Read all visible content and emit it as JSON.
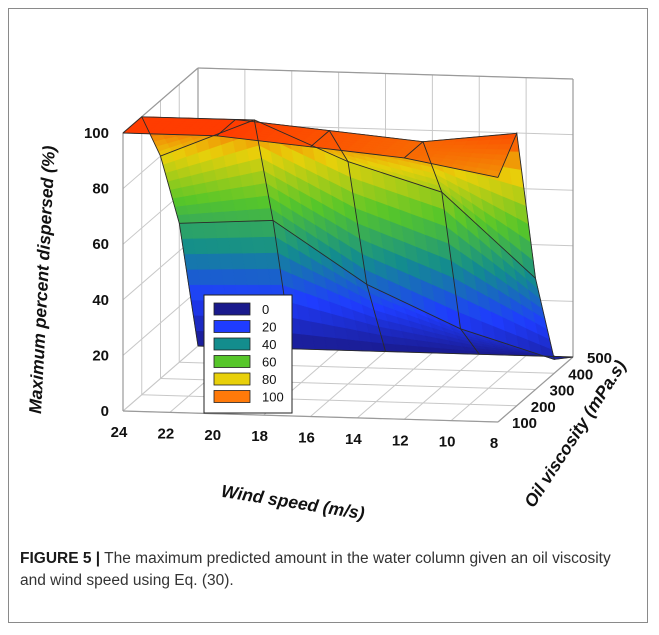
{
  "chart_data": {
    "type": "surface3d",
    "xlabel": "Wind speed (m/s)",
    "ylabel": "Oil viscosity (mPa.s)",
    "zlabel": "Maximum percent dispersed (%)",
    "x_ticks": [
      "24",
      "22",
      "20",
      "18",
      "16",
      "14",
      "12",
      "10",
      "8"
    ],
    "y_ticks": [
      "100",
      "200",
      "300",
      "400",
      "500"
    ],
    "z_ticks": [
      "0",
      "20",
      "40",
      "60",
      "80",
      "100"
    ],
    "x": [
      24,
      20,
      16,
      12,
      8
    ],
    "y": [
      100,
      200,
      300,
      400,
      500
    ],
    "z": [
      [
        100,
        100,
        97,
        94,
        88
      ],
      [
        100,
        100,
        97,
        94,
        98
      ],
      [
        80,
        94,
        80,
        70,
        40
      ],
      [
        50,
        52,
        30,
        15,
        5
      ],
      [
        0,
        0,
        0,
        0,
        0
      ]
    ],
    "zlim": [
      0,
      100
    ],
    "legend": {
      "position": "center-left",
      "entries": [
        "0",
        "20",
        "40",
        "60",
        "80",
        "100"
      ],
      "colors": [
        "#1a1a8c",
        "#1f3cff",
        "#138d8d",
        "#56c62a",
        "#e8d00a",
        "#ff7a0a"
      ]
    },
    "grid": true
  },
  "caption": {
    "label": "FIGURE 5 |",
    "text": " The maximum predicted amount in the water column given an oil viscosity and wind speed using Eq. (30)."
  }
}
